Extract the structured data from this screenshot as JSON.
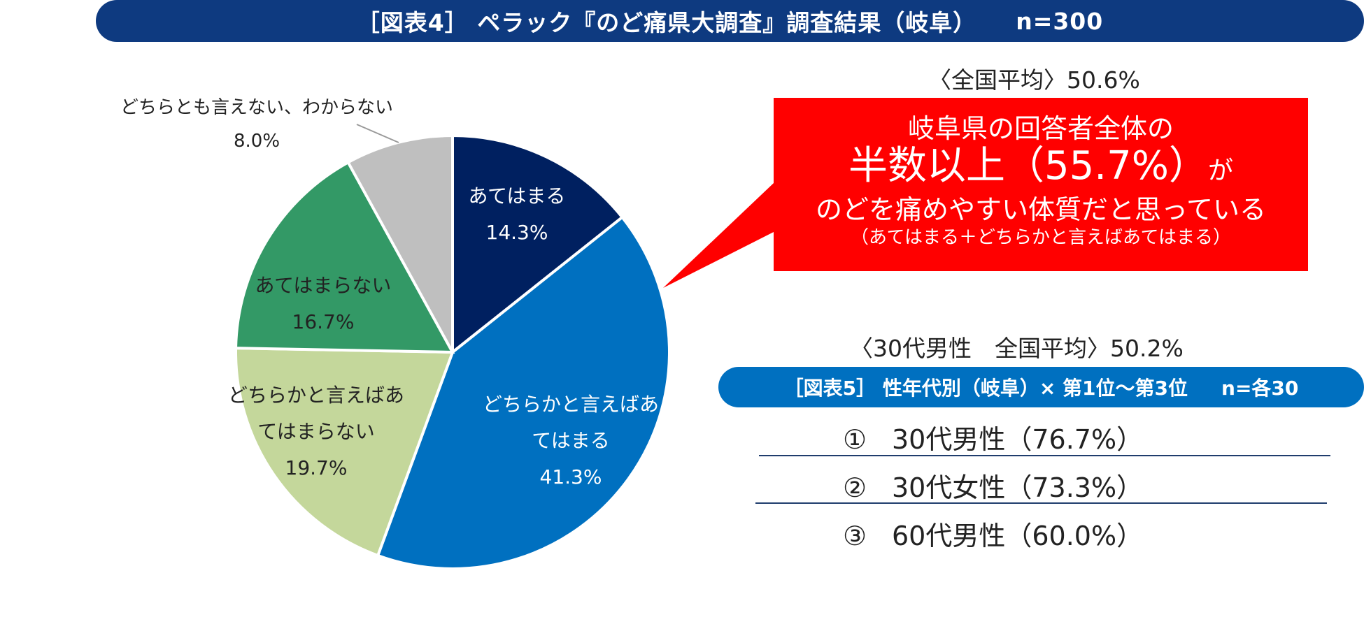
{
  "header": {
    "title": "［図表4］ ペラック『のど痛県大調査』調査結果（岐阜）",
    "n_label": "n=300"
  },
  "national_average": "〈全国平均〉50.6%",
  "callout": {
    "line1": "岐阜県の回答者全体の",
    "line2_main": "半数以上（55.7%）",
    "line2_suffix": "が",
    "line3": "のどを痛めやすい体質だと思っている",
    "line4": "（あてはまる＋どちらかと言えばあてはまる）"
  },
  "men30_national_average": "〈30代男性　全国平均〉50.2%",
  "ranking": {
    "title": "［図表5］ 性年代別（岐阜）× 第1位～第3位",
    "n_label": "n=各30",
    "items": [
      {
        "num": "①",
        "label": "30代男性（76.7%）"
      },
      {
        "num": "②",
        "label": "30代女性（73.3%）"
      },
      {
        "num": "③",
        "label": "60代男性（60.0%）"
      }
    ]
  },
  "chart_data": {
    "type": "pie",
    "title": "［図表4］ ペラック『のど痛県大調査』調査結果（岐阜）",
    "start": "12 o'clock",
    "direction": "clockwise",
    "slices": [
      {
        "label_lines": [
          "あてはまる"
        ],
        "value": 14.3,
        "value_label": "14.3%",
        "color": "#002060",
        "text_color": "#ffffff"
      },
      {
        "label_lines": [
          "どちらかと言えばあ",
          "てはまる"
        ],
        "value": 41.3,
        "value_label": "41.3%",
        "color": "#0070c0",
        "text_color": "#ffffff"
      },
      {
        "label_lines": [
          "どちらかと言えばあ",
          "てはまらない"
        ],
        "value": 19.7,
        "value_label": "19.7%",
        "color": "#c4d79b",
        "text_color": "#222222"
      },
      {
        "label_lines": [
          "あてはまらない"
        ],
        "value": 16.7,
        "value_label": "16.7%",
        "color": "#339966",
        "text_color": "#222222"
      },
      {
        "label_lines": [
          "どちらとも言えない、わからない"
        ],
        "value": 8.0,
        "value_label": "8.0%",
        "color": "#bfbfbf",
        "text_color": "#222222",
        "outside": true
      }
    ]
  }
}
